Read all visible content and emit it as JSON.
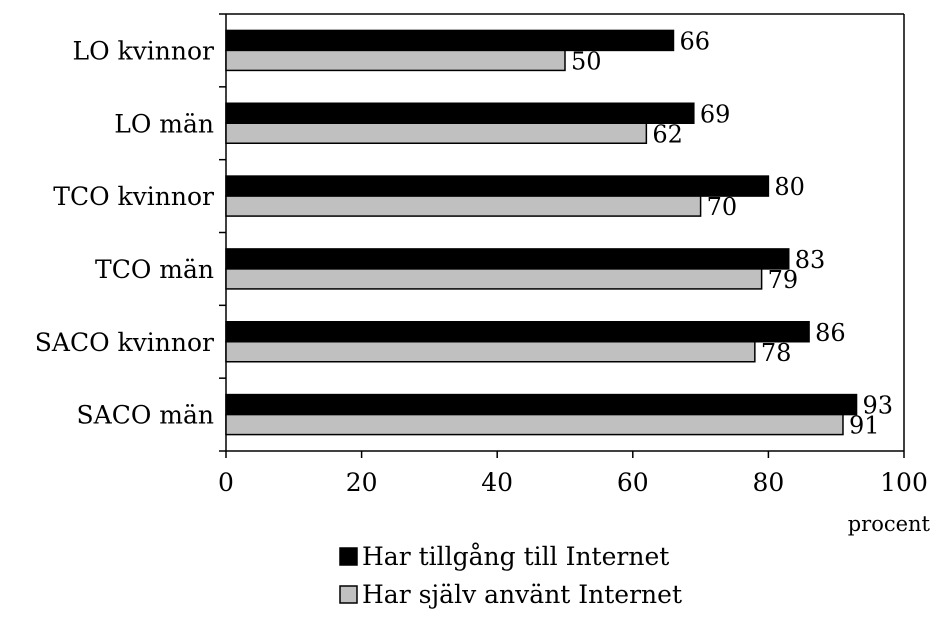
{
  "chart_data": {
    "type": "bar",
    "orientation": "horizontal",
    "categories": [
      "LO kvinnor",
      "LO män",
      "TCO kvinnor",
      "TCO män",
      "SACO kvinnor",
      "SACO män"
    ],
    "series": [
      {
        "name": "Har tillgång till Internet",
        "color": "#000000",
        "values": [
          66,
          69,
          80,
          83,
          86,
          93
        ]
      },
      {
        "name": "Har själv använt Internet",
        "color": "#c0c0c0",
        "values": [
          50,
          62,
          70,
          79,
          78,
          91
        ]
      }
    ],
    "xlim": [
      0,
      100
    ],
    "xticks": [
      0,
      20,
      40,
      60,
      80,
      100
    ],
    "xlabel": "procent",
    "title": "",
    "legend_position": "bottom",
    "grid": false
  }
}
